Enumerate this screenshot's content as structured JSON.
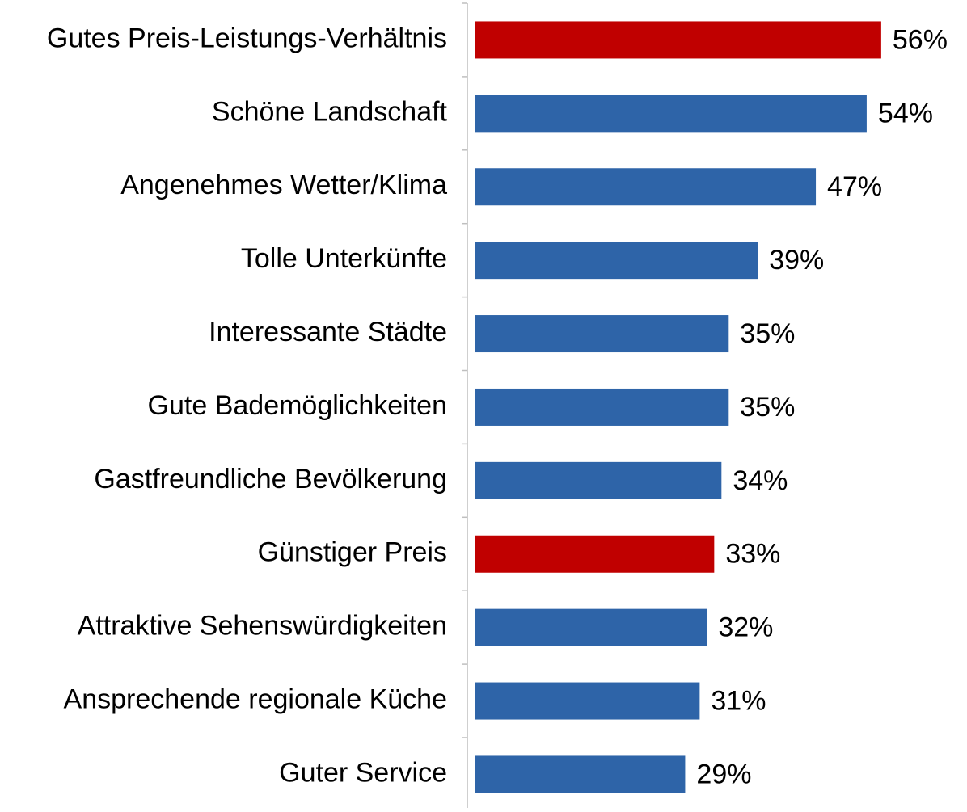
{
  "chart_data": {
    "type": "bar",
    "orientation": "horizontal",
    "categories": [
      "Gutes Preis-Leistungs-Verhältnis",
      "Schöne Landschaft",
      "Angenehmes Wetter/Klima",
      "Tolle Unterkünfte",
      "Interessante Städte",
      "Gute Bademöglichkeiten",
      "Gastfreundliche Bevölkerung",
      "Günstiger Preis",
      "Attraktive Sehenswürdigkeiten",
      "Ansprechende regionale Küche",
      "Guter Service"
    ],
    "values": [
      56,
      54,
      47,
      39,
      35,
      35,
      34,
      33,
      32,
      31,
      29
    ],
    "value_labels": [
      "56%",
      "54%",
      "47%",
      "39%",
      "35%",
      "35%",
      "34%",
      "33%",
      "32%",
      "31%",
      "29%"
    ],
    "colors": [
      "#c00000",
      "#2e64a8",
      "#2e64a8",
      "#2e64a8",
      "#2e64a8",
      "#2e64a8",
      "#2e64a8",
      "#c00000",
      "#2e64a8",
      "#2e64a8",
      "#2e64a8"
    ]
  }
}
